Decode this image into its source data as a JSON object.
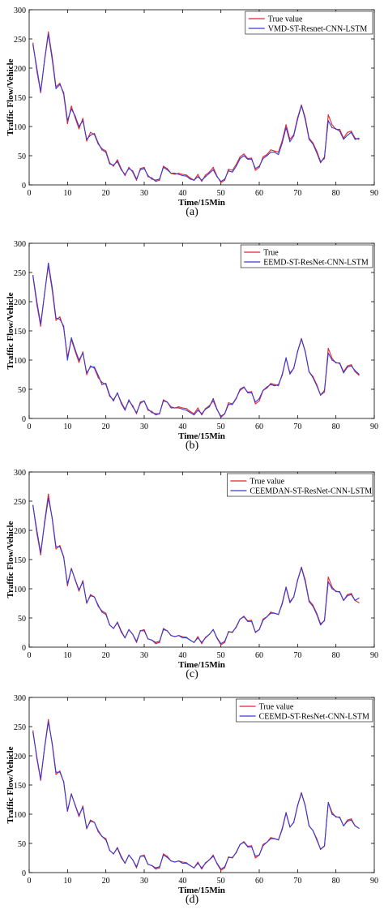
{
  "colors": {
    "true": "#e8232b",
    "pred": "#3a3ad0"
  },
  "chart_data": [
    {
      "type": "line",
      "caption": "(a)",
      "xlabel": "Time/15Min",
      "ylabel": "Traffic Flow/Vehicle",
      "xlim": [
        0,
        90
      ],
      "ylim": [
        0,
        300
      ],
      "xticks": [
        0,
        10,
        20,
        30,
        40,
        50,
        60,
        70,
        80,
        90
      ],
      "yticks": [
        0,
        50,
        100,
        150,
        200,
        250,
        300
      ],
      "legend_position": "top-right",
      "series": [
        {
          "name": "True value",
          "color": "#e8232b",
          "values": [
            243,
            195,
            158,
            213,
            262,
            220,
            168,
            174,
            155,
            105,
            135,
            115,
            96,
            114,
            75,
            90,
            86,
            70,
            62,
            58,
            38,
            32,
            43,
            28,
            16,
            30,
            22,
            8,
            28,
            30,
            14,
            12,
            6,
            8,
            32,
            28,
            20,
            18,
            20,
            18,
            17,
            12,
            8,
            18,
            6,
            17,
            22,
            30,
            15,
            4,
            8,
            27,
            25,
            35,
            48,
            53,
            45,
            46,
            25,
            30,
            48,
            52,
            60,
            58,
            56,
            76,
            103,
            78,
            86,
            115,
            137,
            115,
            80,
            72,
            58,
            40,
            45,
            120,
            103,
            95,
            95,
            80,
            90,
            92,
            80,
            78
          ]
        },
        {
          "name": "VMD-ST-Resnet-CNN-LSTM",
          "color": "#3a3ad0",
          "values": [
            240,
            200,
            160,
            212,
            258,
            215,
            165,
            172,
            158,
            110,
            130,
            118,
            100,
            110,
            78,
            85,
            88,
            72,
            60,
            56,
            36,
            34,
            40,
            26,
            18,
            28,
            24,
            10,
            26,
            28,
            16,
            10,
            8,
            10,
            30,
            26,
            20,
            20,
            18,
            16,
            15,
            10,
            8,
            14,
            8,
            14,
            20,
            26,
            14,
            6,
            10,
            24,
            22,
            32,
            45,
            50,
            44,
            44,
            28,
            32,
            45,
            50,
            56,
            56,
            52,
            72,
            98,
            74,
            84,
            112,
            136,
            112,
            78,
            70,
            55,
            38,
            48,
            110,
            98,
            96,
            92,
            78,
            85,
            90,
            78,
            80
          ]
        }
      ]
    },
    {
      "type": "line",
      "caption": "(b)",
      "xlabel": "Time/15Min",
      "ylabel": "Traffic Flow/Vehicle",
      "xlim": [
        0,
        90
      ],
      "ylim": [
        0,
        300
      ],
      "xticks": [
        0,
        10,
        20,
        30,
        40,
        50,
        60,
        70,
        80,
        90
      ],
      "yticks": [
        0,
        50,
        100,
        150,
        200,
        250,
        300
      ],
      "legend_position": "top-right",
      "series": [
        {
          "name": "True",
          "color": "#e8232b",
          "values": [
            243,
            195,
            158,
            213,
            262,
            220,
            168,
            174,
            155,
            105,
            135,
            115,
            96,
            114,
            75,
            90,
            86,
            70,
            62,
            58,
            38,
            32,
            43,
            28,
            16,
            30,
            22,
            8,
            28,
            30,
            14,
            12,
            6,
            8,
            32,
            28,
            20,
            18,
            20,
            18,
            17,
            12,
            8,
            18,
            6,
            17,
            22,
            30,
            15,
            4,
            8,
            27,
            25,
            35,
            48,
            53,
            45,
            46,
            25,
            30,
            48,
            52,
            60,
            58,
            56,
            76,
            103,
            78,
            86,
            115,
            137,
            115,
            80,
            72,
            58,
            40,
            45,
            120,
            103,
            95,
            95,
            80,
            90,
            92,
            80,
            74
          ]
        },
        {
          "name": "EEMD-ST-ResNet-CNN-LSTM",
          "color": "#3a3ad0",
          "values": [
            245,
            200,
            162,
            212,
            266,
            225,
            172,
            170,
            158,
            100,
            138,
            118,
            100,
            112,
            78,
            88,
            88,
            74,
            58,
            60,
            40,
            30,
            44,
            26,
            14,
            32,
            20,
            10,
            26,
            30,
            16,
            10,
            8,
            8,
            30,
            28,
            18,
            18,
            18,
            16,
            14,
            10,
            6,
            14,
            8,
            16,
            20,
            34,
            16,
            2,
            8,
            24,
            24,
            34,
            50,
            54,
            44,
            44,
            28,
            34,
            48,
            54,
            58,
            56,
            58,
            74,
            104,
            76,
            86,
            114,
            136,
            114,
            80,
            70,
            56,
            40,
            48,
            112,
            100,
            96,
            94,
            78,
            88,
            90,
            82,
            76
          ]
        }
      ]
    },
    {
      "type": "line",
      "caption": "(c)",
      "xlabel": "Time/15Min",
      "ylabel": "Traffic Flow/Vehicle",
      "xlim": [
        0,
        90
      ],
      "ylim": [
        0,
        300
      ],
      "xticks": [
        0,
        10,
        20,
        30,
        40,
        50,
        60,
        70,
        80,
        90
      ],
      "yticks": [
        0,
        50,
        100,
        150,
        200,
        250,
        300
      ],
      "legend_position": "top-right",
      "series": [
        {
          "name": "True value",
          "color": "#e8232b",
          "values": [
            243,
            195,
            158,
            213,
            262,
            220,
            168,
            174,
            155,
            105,
            135,
            115,
            96,
            114,
            75,
            90,
            86,
            70,
            62,
            58,
            38,
            32,
            43,
            28,
            16,
            30,
            22,
            8,
            28,
            30,
            14,
            12,
            6,
            8,
            32,
            28,
            20,
            18,
            20,
            18,
            17,
            12,
            8,
            18,
            6,
            17,
            22,
            30,
            15,
            4,
            8,
            27,
            25,
            35,
            48,
            53,
            45,
            46,
            25,
            30,
            48,
            52,
            60,
            58,
            56,
            76,
            103,
            78,
            86,
            115,
            137,
            115,
            80,
            72,
            58,
            40,
            45,
            120,
            103,
            95,
            95,
            80,
            90,
            92,
            80,
            76
          ]
        },
        {
          "name": "CEEMDAN-ST-ResNet-CNN-LSTM",
          "color": "#3a3ad0",
          "values": [
            242,
            200,
            162,
            210,
            255,
            222,
            172,
            172,
            154,
            108,
            134,
            116,
            98,
            112,
            76,
            88,
            86,
            72,
            60,
            56,
            38,
            32,
            42,
            26,
            16,
            30,
            22,
            10,
            28,
            28,
            14,
            12,
            8,
            10,
            30,
            28,
            20,
            18,
            20,
            16,
            16,
            12,
            8,
            16,
            8,
            16,
            22,
            30,
            16,
            6,
            10,
            26,
            26,
            34,
            48,
            52,
            44,
            44,
            26,
            30,
            46,
            52,
            58,
            58,
            56,
            74,
            102,
            76,
            86,
            114,
            136,
            112,
            78,
            70,
            56,
            38,
            46,
            112,
            100,
            96,
            94,
            80,
            88,
            90,
            80,
            84
          ]
        }
      ]
    },
    {
      "type": "line",
      "caption": "(d)",
      "xlabel": "Time/15Min",
      "ylabel": "Traffic Flow/Vehicle",
      "xlim": [
        0,
        90
      ],
      "ylim": [
        0,
        300
      ],
      "xticks": [
        0,
        10,
        20,
        30,
        40,
        50,
        60,
        70,
        80,
        90
      ],
      "yticks": [
        0,
        50,
        100,
        150,
        200,
        250,
        300
      ],
      "legend_position": "top-right",
      "series": [
        {
          "name": "True value",
          "color": "#e8232b",
          "values": [
            243,
            195,
            158,
            213,
            262,
            220,
            168,
            174,
            155,
            105,
            135,
            115,
            96,
            114,
            75,
            90,
            86,
            70,
            62,
            58,
            38,
            32,
            43,
            28,
            16,
            30,
            22,
            8,
            28,
            30,
            14,
            12,
            6,
            8,
            32,
            28,
            20,
            18,
            20,
            18,
            17,
            12,
            8,
            18,
            6,
            17,
            22,
            30,
            15,
            4,
            8,
            27,
            25,
            35,
            48,
            53,
            45,
            46,
            25,
            30,
            48,
            52,
            60,
            58,
            56,
            76,
            103,
            78,
            86,
            115,
            137,
            115,
            80,
            72,
            58,
            40,
            45,
            120,
            103,
            95,
            95,
            80,
            90,
            92,
            80,
            76
          ]
        },
        {
          "name": "CEEMD-ST-ResNet-CNN-LSTM",
          "color": "#3a3ad0",
          "values": [
            240,
            198,
            160,
            212,
            258,
            222,
            172,
            172,
            156,
            106,
            134,
            116,
            98,
            112,
            76,
            88,
            86,
            72,
            62,
            56,
            38,
            32,
            42,
            26,
            16,
            30,
            22,
            10,
            28,
            28,
            14,
            12,
            8,
            10,
            30,
            26,
            20,
            18,
            20,
            16,
            16,
            12,
            8,
            16,
            8,
            16,
            22,
            28,
            16,
            6,
            10,
            26,
            26,
            34,
            48,
            52,
            44,
            44,
            28,
            30,
            46,
            52,
            58,
            58,
            56,
            74,
            102,
            78,
            86,
            114,
            136,
            114,
            80,
            72,
            56,
            40,
            46,
            120,
            100,
            96,
            94,
            80,
            88,
            90,
            80,
            76
          ]
        }
      ]
    }
  ]
}
